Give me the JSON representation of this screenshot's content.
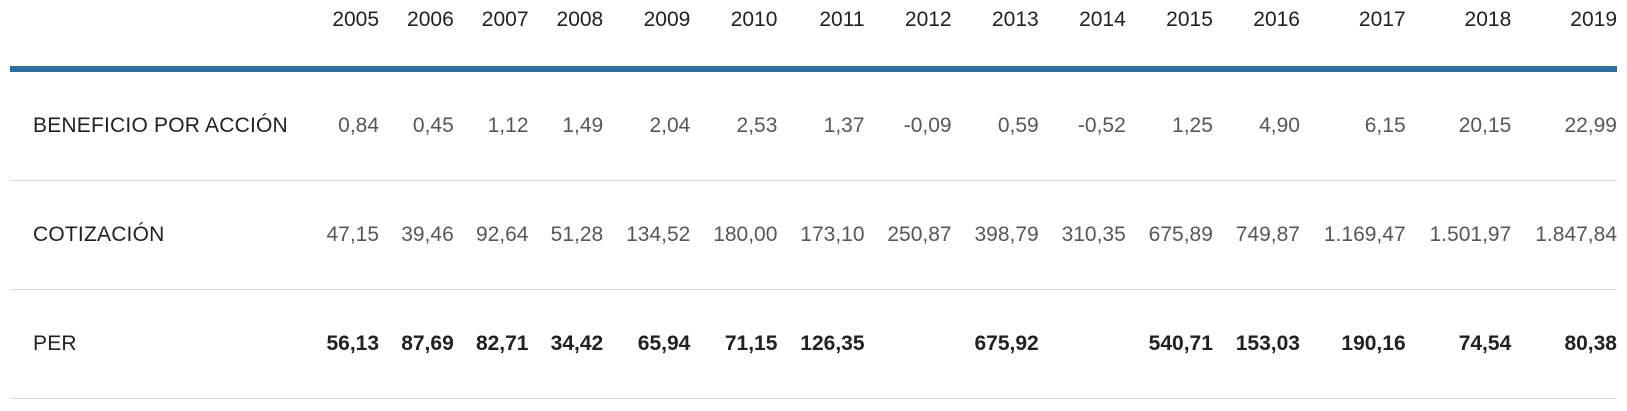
{
  "table": {
    "header": {
      "label_column": "",
      "years": [
        "2005",
        "2006",
        "2007",
        "2008",
        "2009",
        "2010",
        "2011",
        "2012",
        "2013",
        "2014",
        "2015",
        "2016",
        "2017",
        "2018",
        "2019"
      ]
    },
    "rows": [
      {
        "label": "BENEFICIO POR ACCIÓN",
        "emphasis": false,
        "values": [
          "0,84",
          "0,45",
          "1,12",
          "1,49",
          "2,04",
          "2,53",
          "1,37",
          "-0,09",
          "0,59",
          "-0,52",
          "1,25",
          "4,90",
          "6,15",
          "20,15",
          "22,99"
        ]
      },
      {
        "label": "COTIZACIÓN",
        "emphasis": false,
        "values": [
          "47,15",
          "39,46",
          "92,64",
          "51,28",
          "134,52",
          "180,00",
          "173,10",
          "250,87",
          "398,79",
          "310,35",
          "675,89",
          "749,87",
          "1.169,47",
          "1.501,97",
          "1.847,84"
        ]
      },
      {
        "label": "PER",
        "emphasis": true,
        "values": [
          "56,13",
          "87,69",
          "82,71",
          "34,42",
          "65,94",
          "71,15",
          "126,35",
          "",
          "675,92",
          "",
          "540,71",
          "153,03",
          "190,16",
          "74,54",
          "80,38"
        ]
      }
    ],
    "colors": {
      "accent_line": "#2e6d9e",
      "row_separator": "#dcdcdc",
      "header_text": "#212121",
      "value_text": "#575757",
      "emphasis_text": "#212121"
    }
  },
  "chart_data": {
    "type": "table",
    "title": "",
    "categories": [
      "2005",
      "2006",
      "2007",
      "2008",
      "2009",
      "2010",
      "2011",
      "2012",
      "2013",
      "2014",
      "2015",
      "2016",
      "2017",
      "2018",
      "2019"
    ],
    "series": [
      {
        "name": "BENEFICIO POR ACCIÓN",
        "values": [
          0.84,
          0.45,
          1.12,
          1.49,
          2.04,
          2.53,
          1.37,
          -0.09,
          0.59,
          -0.52,
          1.25,
          4.9,
          6.15,
          20.15,
          22.99
        ]
      },
      {
        "name": "COTIZACIÓN",
        "values": [
          47.15,
          39.46,
          92.64,
          51.28,
          134.52,
          180.0,
          173.1,
          250.87,
          398.79,
          310.35,
          675.89,
          749.87,
          1169.47,
          1501.97,
          1847.84
        ]
      },
      {
        "name": "PER",
        "values": [
          56.13,
          87.69,
          82.71,
          34.42,
          65.94,
          71.15,
          126.35,
          null,
          675.92,
          null,
          540.71,
          153.03,
          190.16,
          74.54,
          80.38
        ]
      }
    ],
    "layout": {
      "decimal_separator": ",",
      "thousands_separator": ".",
      "blank_cells": [
        [
          "PER",
          "2012"
        ],
        [
          "PER",
          "2014"
        ]
      ]
    }
  }
}
